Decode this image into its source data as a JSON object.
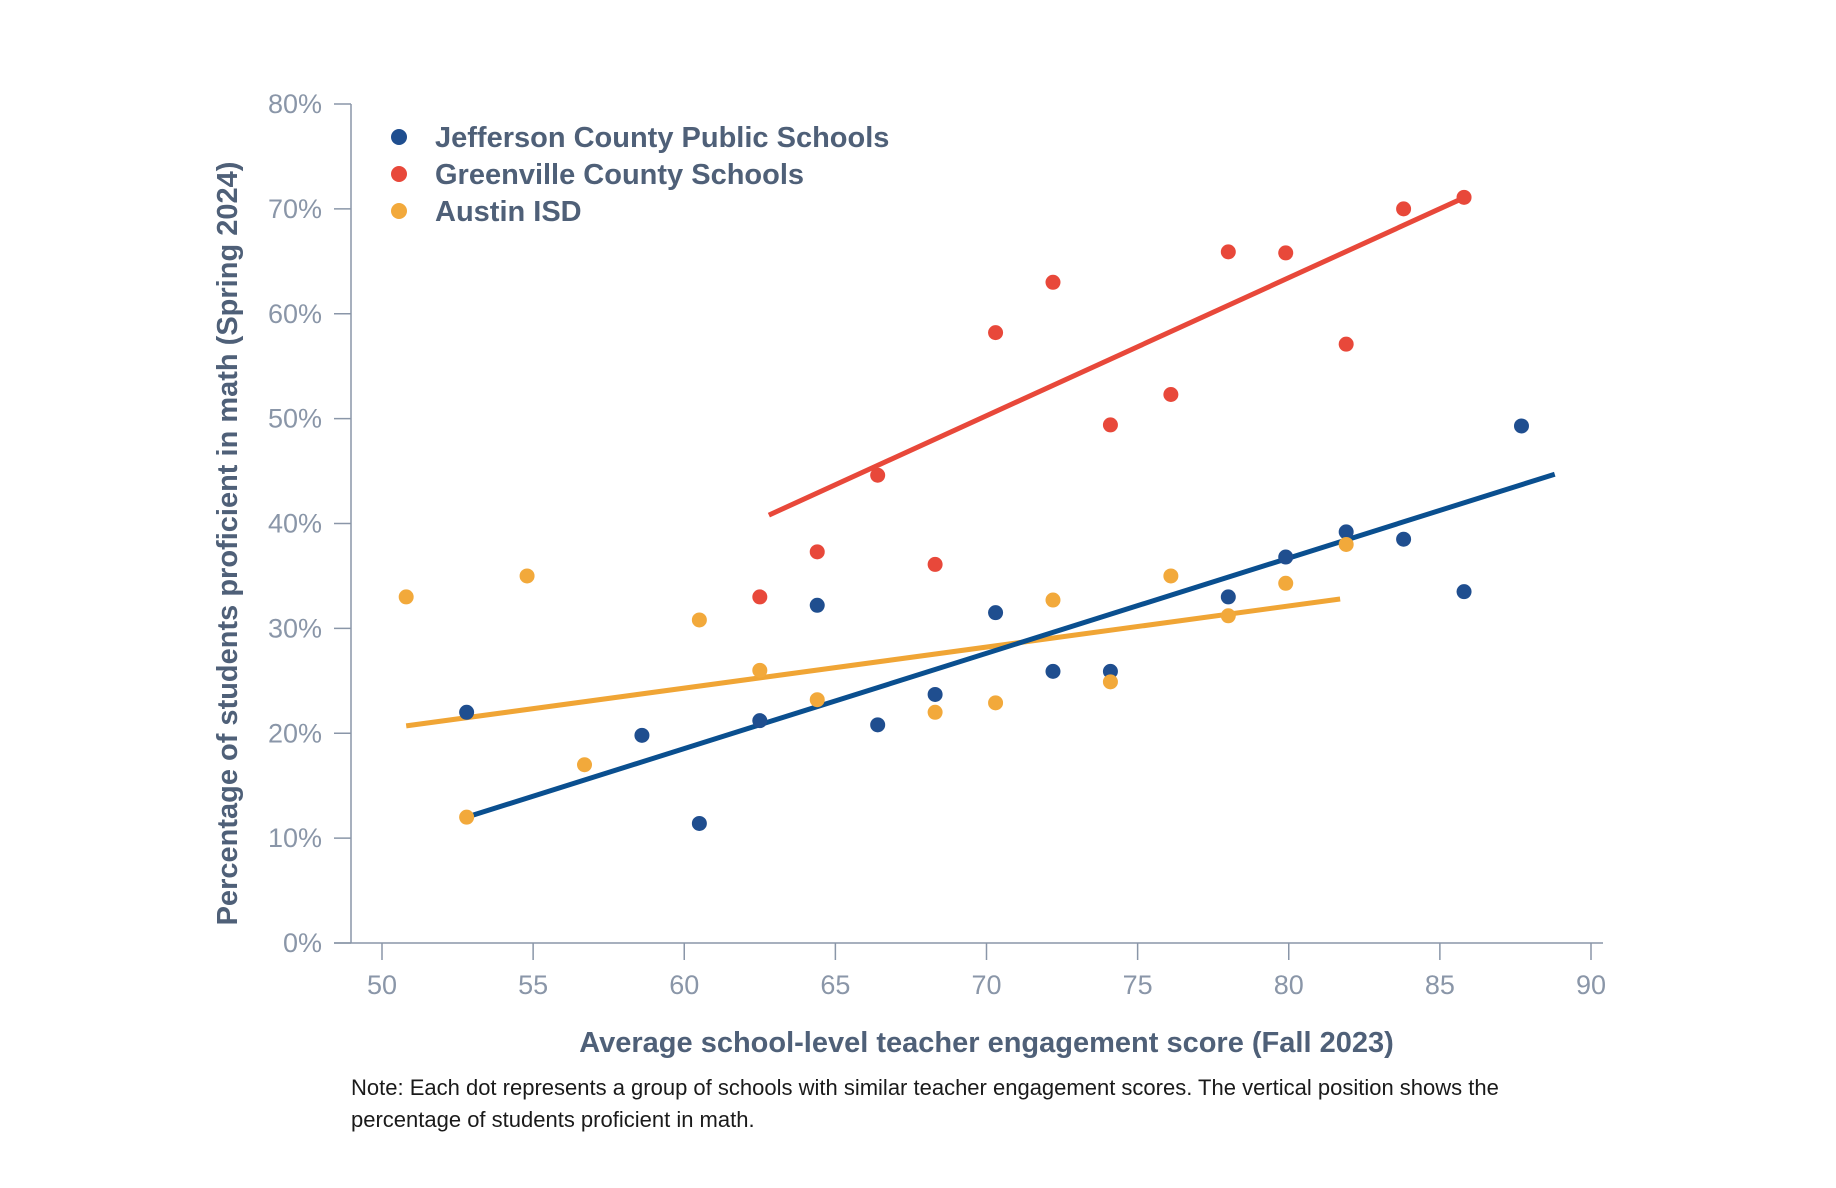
{
  "chart_data": {
    "type": "scatter",
    "xlabel": "Average school-level teacher engagement score (Fall 2023)",
    "ylabel": "Percentage of students proficient in math (Spring 2024)",
    "xlim": [
      49,
      90.5
    ],
    "ylim": [
      0,
      80
    ],
    "x_ticks": [
      50,
      55,
      60,
      65,
      70,
      75,
      80,
      85,
      90
    ],
    "y_ticks": [
      0,
      10,
      20,
      30,
      40,
      50,
      60,
      70,
      80
    ],
    "y_tick_labels": [
      "0%",
      "10%",
      "20%",
      "30%",
      "40%",
      "50%",
      "60%",
      "70%",
      "80%"
    ],
    "x_tick_labels": [
      "50",
      "55",
      "60",
      "65",
      "70",
      "75",
      "80",
      "85",
      "90"
    ],
    "legend_position": "top-left",
    "series": [
      {
        "name": "Jefferson County Public Schools",
        "color": "#1f4e8f",
        "trend_color": "#0a4f8f",
        "points": [
          [
            52.8,
            22.0
          ],
          [
            58.6,
            19.8
          ],
          [
            60.5,
            11.4
          ],
          [
            62.5,
            21.2
          ],
          [
            64.4,
            32.2
          ],
          [
            66.4,
            20.8
          ],
          [
            68.3,
            23.7
          ],
          [
            70.3,
            31.5
          ],
          [
            72.2,
            25.9
          ],
          [
            74.1,
            25.9
          ],
          [
            78.0,
            33.0
          ],
          [
            79.9,
            36.8
          ],
          [
            81.9,
            39.2
          ],
          [
            83.8,
            38.5
          ],
          [
            85.8,
            33.5
          ],
          [
            87.7,
            49.3
          ]
        ],
        "trend": [
          [
            52.8,
            12.0
          ],
          [
            88.8,
            44.7
          ]
        ]
      },
      {
        "name": "Greenville County Schools",
        "color": "#e8483a",
        "trend_color": "#e8483a",
        "points": [
          [
            62.5,
            33.0
          ],
          [
            64.4,
            37.3
          ],
          [
            66.4,
            44.6
          ],
          [
            68.3,
            36.1
          ],
          [
            70.3,
            58.2
          ],
          [
            72.2,
            63.0
          ],
          [
            74.1,
            49.4
          ],
          [
            76.1,
            52.3
          ],
          [
            78.0,
            65.9
          ],
          [
            79.9,
            65.8
          ],
          [
            81.9,
            57.1
          ],
          [
            83.8,
            70.0
          ],
          [
            85.8,
            71.1
          ]
        ],
        "trend": [
          [
            62.8,
            40.8
          ],
          [
            85.9,
            71.2
          ]
        ]
      },
      {
        "name": "Austin ISD",
        "color": "#f2a93b",
        "trend_color": "#f0a535",
        "points": [
          [
            50.8,
            33.0
          ],
          [
            52.8,
            12.0
          ],
          [
            54.8,
            35.0
          ],
          [
            56.7,
            17.0
          ],
          [
            60.5,
            30.8
          ],
          [
            62.5,
            26.0
          ],
          [
            64.4,
            23.2
          ],
          [
            68.3,
            22.0
          ],
          [
            70.3,
            22.9
          ],
          [
            72.2,
            32.7
          ],
          [
            74.1,
            24.9
          ],
          [
            76.1,
            35.0
          ],
          [
            78.0,
            31.2
          ],
          [
            79.9,
            34.3
          ],
          [
            81.9,
            38.0
          ]
        ],
        "trend": [
          [
            50.8,
            20.7
          ],
          [
            81.7,
            32.8
          ]
        ]
      }
    ],
    "note": "Note: Each dot represents a group of schools with similar teacher engagement scores. The vertical position shows the percentage of students proficient in math."
  }
}
